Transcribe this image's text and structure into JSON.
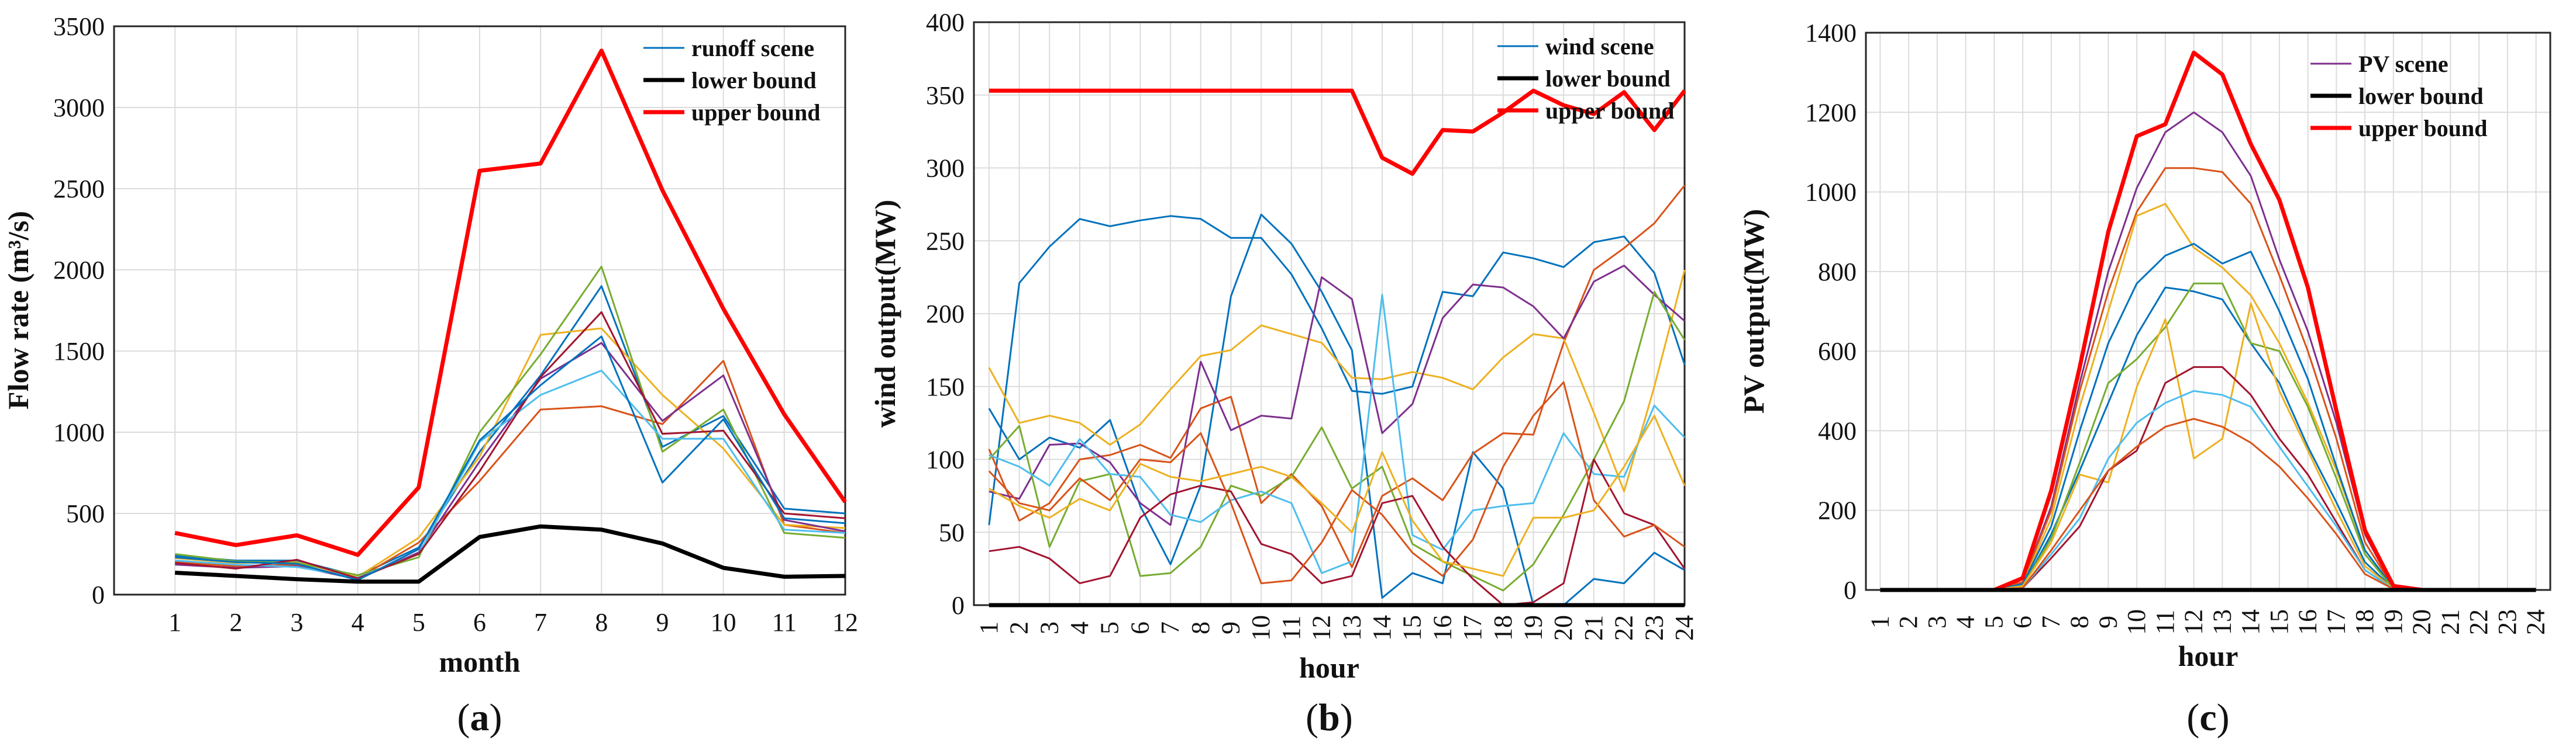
{
  "figure": {
    "captions": [
      "(a)",
      "(b)",
      "(c)"
    ],
    "caption_letters": [
      "a",
      "b",
      "c"
    ]
  },
  "chart_data": [
    {
      "type": "line",
      "panel": "a",
      "caption": "(a)",
      "xlabel": "month",
      "ylabel": "Flow rate (m³/s)",
      "x": [
        1,
        2,
        3,
        4,
        5,
        6,
        7,
        8,
        9,
        10,
        11,
        12
      ],
      "xlim": [
        0,
        12
      ],
      "ylim": [
        0,
        3500
      ],
      "yticks": [
        0,
        500,
        1000,
        1500,
        2000,
        2500,
        3000,
        3500
      ],
      "grid": true,
      "legend_position": "top-right",
      "legend": [
        "runoff scene",
        "lower bound",
        "upper bound"
      ],
      "series": [
        {
          "name": "upper bound",
          "color": "#ff0000",
          "width": 7,
          "values": [
            380,
            305,
            365,
            245,
            660,
            2610,
            2655,
            3350,
            2490,
            1760,
            1110,
            570
          ]
        },
        {
          "name": "lower bound",
          "color": "#000000",
          "width": 7,
          "values": [
            135,
            115,
            95,
            80,
            80,
            355,
            420,
            400,
            315,
            165,
            110,
            115
          ]
        },
        {
          "name": "scene 1",
          "color": "#0072bd",
          "values": [
            240,
            210,
            210,
            115,
            290,
            880,
            1350,
            1900,
            910,
            1100,
            530,
            500
          ]
        },
        {
          "name": "scene 2",
          "color": "#d95319",
          "values": [
            200,
            175,
            185,
            100,
            320,
            700,
            1140,
            1160,
            1050,
            1440,
            430,
            380
          ]
        },
        {
          "name": "scene 3",
          "color": "#edb120",
          "values": [
            225,
            195,
            200,
            110,
            350,
            850,
            1600,
            1640,
            1230,
            900,
            430,
            410
          ]
        },
        {
          "name": "scene 4",
          "color": "#7e2f8e",
          "values": [
            185,
            165,
            175,
            95,
            260,
            820,
            1330,
            1550,
            1070,
            1350,
            460,
            390
          ]
        },
        {
          "name": "scene 5",
          "color": "#77ac30",
          "values": [
            250,
            205,
            195,
            120,
            230,
            1000,
            1480,
            2020,
            880,
            1140,
            380,
            350
          ]
        },
        {
          "name": "scene 6",
          "color": "#4dbeee",
          "values": [
            210,
            185,
            170,
            105,
            250,
            940,
            1230,
            1380,
            960,
            960,
            400,
            380
          ]
        },
        {
          "name": "scene 7",
          "color": "#a2142f",
          "values": [
            195,
            160,
            215,
            100,
            250,
            760,
            1340,
            1740,
            990,
            1010,
            500,
            470
          ]
        },
        {
          "name": "scene 8",
          "color": "#0072bd",
          "values": [
            230,
            200,
            190,
            90,
            280,
            950,
            1290,
            1590,
            690,
            1080,
            470,
            440
          ]
        }
      ]
    },
    {
      "type": "line",
      "panel": "b",
      "caption": "(b)",
      "xlabel": "hour",
      "ylabel": "wind output(MW)",
      "x": [
        1,
        2,
        3,
        4,
        5,
        6,
        7,
        8,
        9,
        10,
        11,
        12,
        13,
        14,
        15,
        16,
        17,
        18,
        19,
        20,
        21,
        22,
        23,
        24
      ],
      "xlim": [
        0.5,
        24
      ],
      "ylim": [
        0,
        400
      ],
      "yticks": [
        0,
        50,
        100,
        150,
        200,
        250,
        300,
        350,
        400
      ],
      "grid": true,
      "legend_position": "top-right",
      "legend": [
        "wind scene",
        "lower bound",
        "upper bound"
      ],
      "series": [
        {
          "name": "upper bound",
          "color": "#ff0000",
          "width": 7,
          "values": [
            353,
            353,
            353,
            353,
            353,
            353,
            353,
            353,
            353,
            353,
            353,
            353,
            353,
            307,
            296,
            326,
            325,
            338,
            353,
            343,
            337,
            352,
            326,
            353
          ]
        },
        {
          "name": "lower bound",
          "color": "#000000",
          "width": 7,
          "values": [
            0,
            0,
            0,
            0,
            0,
            0,
            0,
            0,
            0,
            0,
            0,
            0,
            0,
            0,
            0,
            0,
            0,
            0,
            0,
            0,
            0,
            0,
            0,
            0
          ]
        },
        {
          "name": "scene 1",
          "color": "#0072bd",
          "values": [
            55,
            221,
            246,
            265,
            260,
            264,
            267,
            265,
            252,
            252,
            227,
            190,
            147,
            145,
            150,
            215,
            212,
            242,
            238,
            232,
            249,
            253,
            228,
            165
          ]
        },
        {
          "name": "scene 2",
          "color": "#0072bd",
          "values": [
            135,
            100,
            115,
            108,
            127,
            68,
            28,
            82,
            212,
            268,
            248,
            215,
            175,
            5,
            22,
            15,
            105,
            80,
            0,
            0,
            18,
            15,
            36,
            24
          ]
        },
        {
          "name": "scene 3",
          "color": "#d95319",
          "values": [
            107,
            58,
            70,
            100,
            103,
            110,
            101,
            135,
            143,
            70,
            90,
            68,
            26,
            75,
            87,
            72,
            104,
            118,
            117,
            180,
            230,
            245,
            262,
            288
          ]
        },
        {
          "name": "scene 4",
          "color": "#edb120",
          "values": [
            163,
            125,
            130,
            125,
            110,
            124,
            148,
            171,
            175,
            192,
            186,
            180,
            156,
            155,
            160,
            156,
            148,
            170,
            186,
            183,
            132,
            78,
            150,
            230
          ]
        },
        {
          "name": "scene 5",
          "color": "#7e2f8e",
          "values": [
            78,
            73,
            110,
            111,
            98,
            70,
            55,
            167,
            120,
            130,
            128,
            225,
            210,
            118,
            138,
            197,
            220,
            218,
            205,
            183,
            222,
            233,
            213,
            195
          ]
        },
        {
          "name": "scene 6",
          "color": "#77ac30",
          "values": [
            100,
            123,
            40,
            85,
            90,
            20,
            22,
            40,
            82,
            75,
            88,
            122,
            80,
            95,
            42,
            30,
            20,
            10,
            28,
            62,
            100,
            140,
            215,
            182
          ]
        },
        {
          "name": "scene 7",
          "color": "#4dbeee",
          "values": [
            103,
            95,
            82,
            114,
            90,
            88,
            62,
            57,
            72,
            78,
            70,
            22,
            30,
            213,
            48,
            38,
            65,
            68,
            70,
            118,
            90,
            88,
            137,
            115
          ]
        },
        {
          "name": "scene 8",
          "color": "#a2142f",
          "values": [
            37,
            40,
            32,
            15,
            20,
            60,
            76,
            82,
            78,
            42,
            35,
            15,
            20,
            70,
            75,
            40,
            18,
            0,
            2,
            15,
            100,
            63,
            55,
            25
          ]
        },
        {
          "name": "scene 9",
          "color": "#d95319",
          "values": [
            92,
            70,
            65,
            87,
            72,
            100,
            98,
            118,
            70,
            15,
            17,
            43,
            79,
            62,
            36,
            20,
            45,
            95,
            130,
            153,
            72,
            47,
            55,
            40
          ]
        },
        {
          "name": "scene 10",
          "color": "#edb120",
          "values": [
            80,
            68,
            60,
            73,
            65,
            97,
            88,
            85,
            90,
            95,
            88,
            70,
            50,
            105,
            58,
            30,
            25,
            20,
            60,
            60,
            65,
            95,
            130,
            82
          ]
        }
      ]
    },
    {
      "type": "line",
      "panel": "c",
      "caption": "(c)",
      "xlabel": "hour",
      "ylabel": "PV output(MW)",
      "x": [
        1,
        2,
        3,
        4,
        5,
        6,
        7,
        8,
        9,
        10,
        11,
        12,
        13,
        14,
        15,
        16,
        17,
        18,
        19,
        20,
        21,
        22,
        23,
        24
      ],
      "xlim": [
        0.5,
        24.5
      ],
      "ylim": [
        0,
        1400
      ],
      "yticks": [
        0,
        200,
        400,
        600,
        800,
        1000,
        1200,
        1400
      ],
      "grid": true,
      "legend_position": "top-right",
      "legend": [
        "PV scene",
        "lower bound",
        "upper bound"
      ],
      "series": [
        {
          "name": "upper bound",
          "color": "#ff0000",
          "width": 7,
          "values": [
            0,
            0,
            0,
            0,
            0,
            30,
            250,
            560,
            900,
            1140,
            1170,
            1350,
            1295,
            1120,
            980,
            760,
            450,
            150,
            10,
            0,
            0,
            0,
            0,
            0
          ]
        },
        {
          "name": "lower bound",
          "color": "#000000",
          "width": 7,
          "values": [
            0,
            0,
            0,
            0,
            0,
            0,
            0,
            0,
            0,
            0,
            0,
            0,
            0,
            0,
            0,
            0,
            0,
            0,
            0,
            0,
            0,
            0,
            0,
            0
          ]
        },
        {
          "name": "scene 1",
          "color": "#7e2f8e",
          "values": [
            0,
            0,
            0,
            0,
            0,
            20,
            210,
            520,
            800,
            1010,
            1150,
            1200,
            1150,
            1040,
            830,
            650,
            420,
            140,
            5,
            0,
            0,
            0,
            0,
            0
          ]
        },
        {
          "name": "scene 2",
          "color": "#d95319",
          "values": [
            0,
            0,
            0,
            0,
            0,
            20,
            200,
            500,
            750,
            950,
            1060,
            1060,
            1050,
            970,
            790,
            600,
            380,
            120,
            5,
            0,
            0,
            0,
            0,
            0
          ]
        },
        {
          "name": "scene 3",
          "color": "#edb120",
          "values": [
            0,
            0,
            0,
            0,
            0,
            15,
            180,
            460,
            700,
            940,
            970,
            860,
            810,
            740,
            620,
            470,
            300,
            100,
            5,
            0,
            0,
            0,
            0,
            0
          ]
        },
        {
          "name": "scene 4",
          "color": "#0072bd",
          "values": [
            0,
            0,
            0,
            0,
            0,
            15,
            160,
            400,
            620,
            770,
            840,
            870,
            820,
            850,
            700,
            530,
            310,
            100,
            5,
            0,
            0,
            0,
            0,
            0
          ]
        },
        {
          "name": "scene 5",
          "color": "#0072bd",
          "values": [
            0,
            0,
            0,
            0,
            0,
            10,
            140,
            300,
            470,
            640,
            760,
            750,
            730,
            620,
            520,
            360,
            220,
            70,
            3,
            0,
            0,
            0,
            0,
            0
          ]
        },
        {
          "name": "scene 6",
          "color": "#77ac30",
          "values": [
            0,
            0,
            0,
            0,
            0,
            10,
            130,
            320,
            520,
            580,
            660,
            770,
            770,
            620,
            600,
            460,
            280,
            90,
            3,
            0,
            0,
            0,
            0,
            0
          ]
        },
        {
          "name": "scene 7",
          "color": "#edb120",
          "values": [
            0,
            0,
            0,
            0,
            0,
            10,
            120,
            290,
            270,
            510,
            680,
            330,
            380,
            720,
            500,
            350,
            200,
            60,
            3,
            0,
            0,
            0,
            0,
            0
          ]
        },
        {
          "name": "scene 8",
          "color": "#a2142f",
          "values": [
            0,
            0,
            0,
            0,
            0,
            5,
            80,
            160,
            300,
            350,
            520,
            560,
            560,
            490,
            380,
            290,
            170,
            50,
            2,
            0,
            0,
            0,
            0,
            0
          ]
        },
        {
          "name": "scene 9",
          "color": "#4dbeee",
          "values": [
            0,
            0,
            0,
            0,
            0,
            5,
            90,
            180,
            330,
            420,
            470,
            500,
            490,
            460,
            360,
            260,
            160,
            50,
            2,
            0,
            0,
            0,
            0,
            0
          ]
        },
        {
          "name": "scene 10",
          "color": "#d95319",
          "values": [
            0,
            0,
            0,
            0,
            0,
            5,
            100,
            200,
            300,
            360,
            410,
            430,
            410,
            370,
            310,
            230,
            140,
            40,
            2,
            0,
            0,
            0,
            0,
            0
          ]
        }
      ]
    }
  ]
}
